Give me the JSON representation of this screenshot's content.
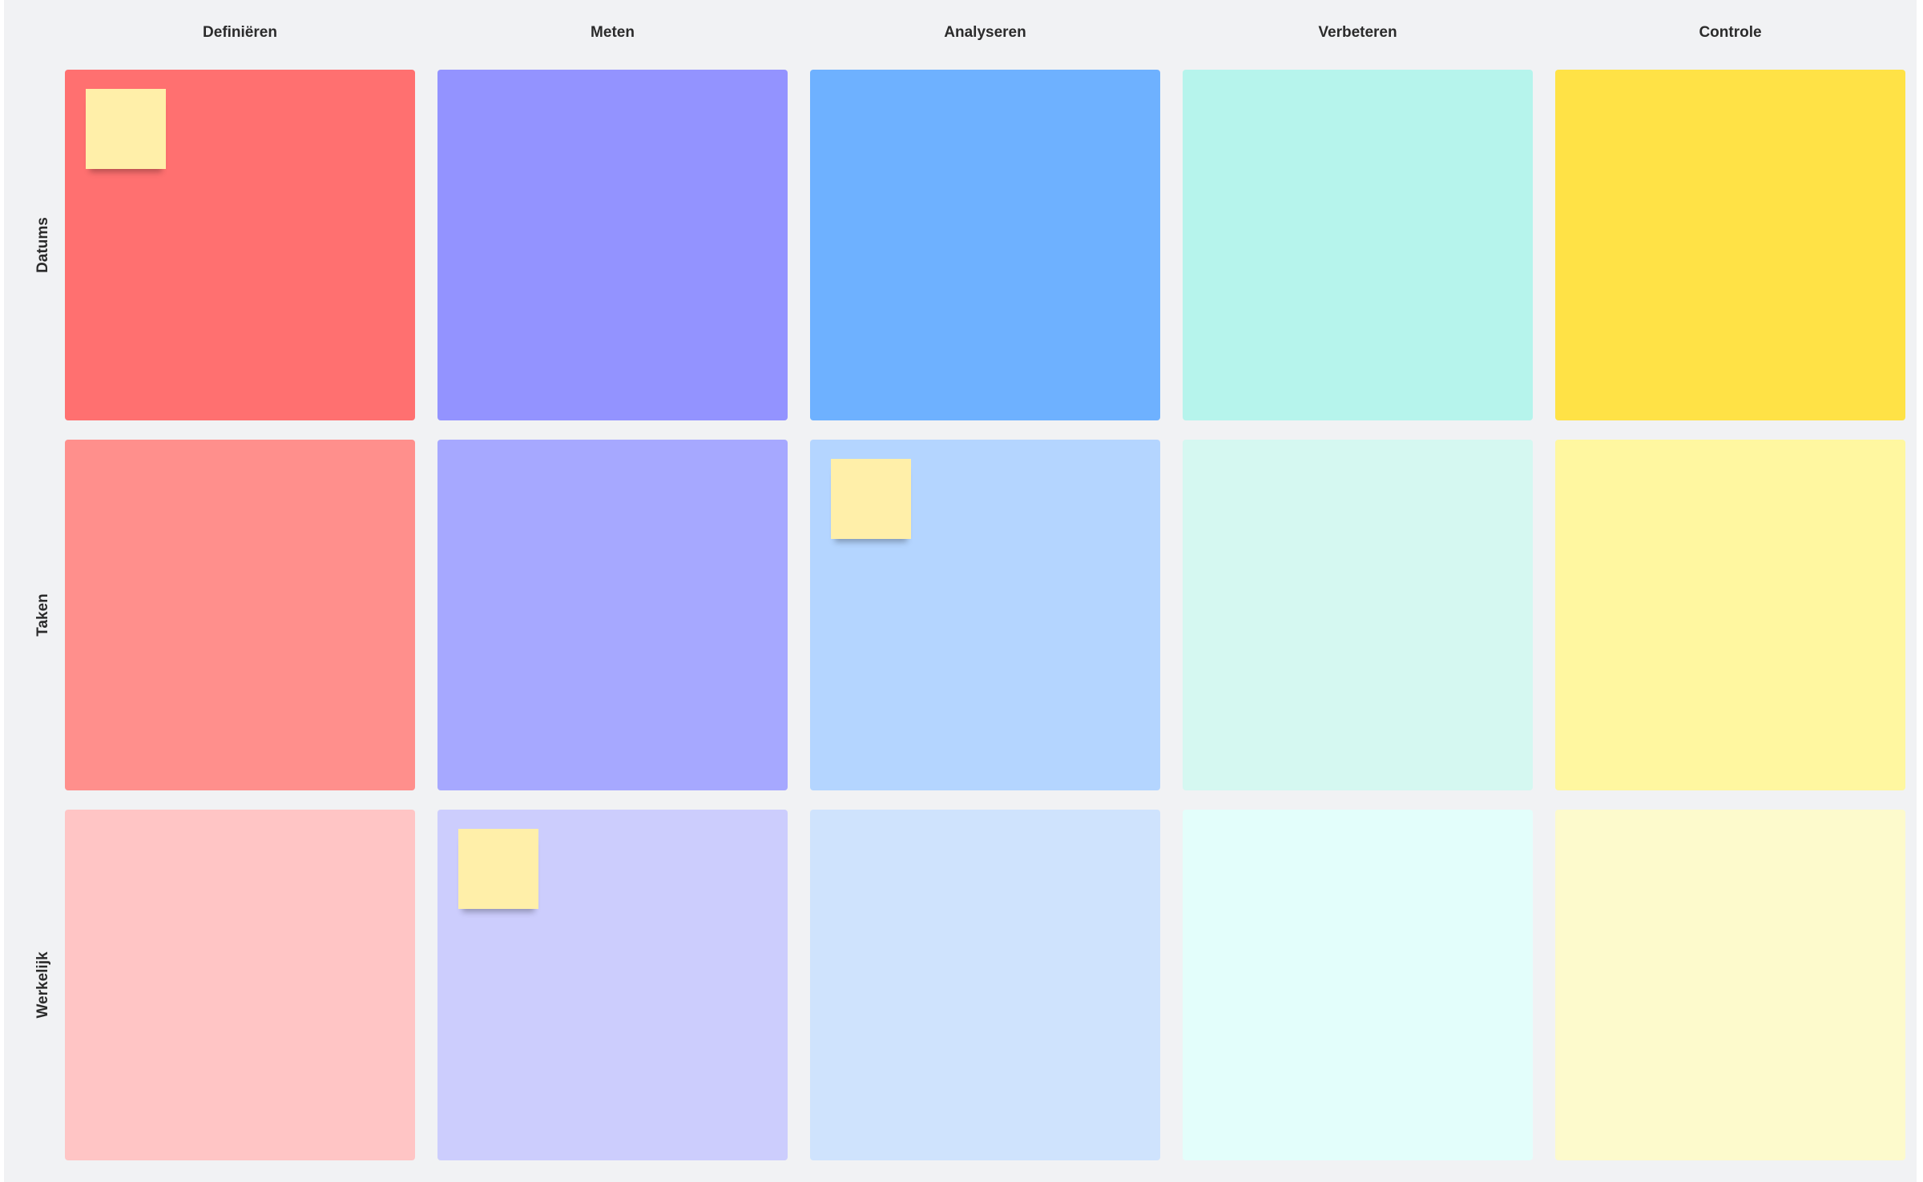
{
  "columns": [
    "Definiëren",
    "Meten",
    "Analyseren",
    "Verbeteren",
    "Controle"
  ],
  "rows": [
    "Datums",
    "Taken",
    "Werkelijk"
  ],
  "colors": {
    "background": "#f1f2f4",
    "sticky_note": "#ffefa9",
    "cells": [
      [
        "#ff7070",
        "#9393ff",
        "#6eb1ff",
        "#b6f4ec",
        "#ffe246"
      ],
      [
        "#ff8f8c",
        "#a6a8ff",
        "#b4d5ff",
        "#d5f8f1",
        "#fff7a0"
      ],
      [
        "#ffc5c5",
        "#cccdfd",
        "#cfe3fd",
        "#e3fefb",
        "#fdfacc"
      ]
    ]
  },
  "sticky_notes": [
    {
      "row": 0,
      "col": 0
    },
    {
      "row": 1,
      "col": 2
    },
    {
      "row": 2,
      "col": 1
    }
  ]
}
